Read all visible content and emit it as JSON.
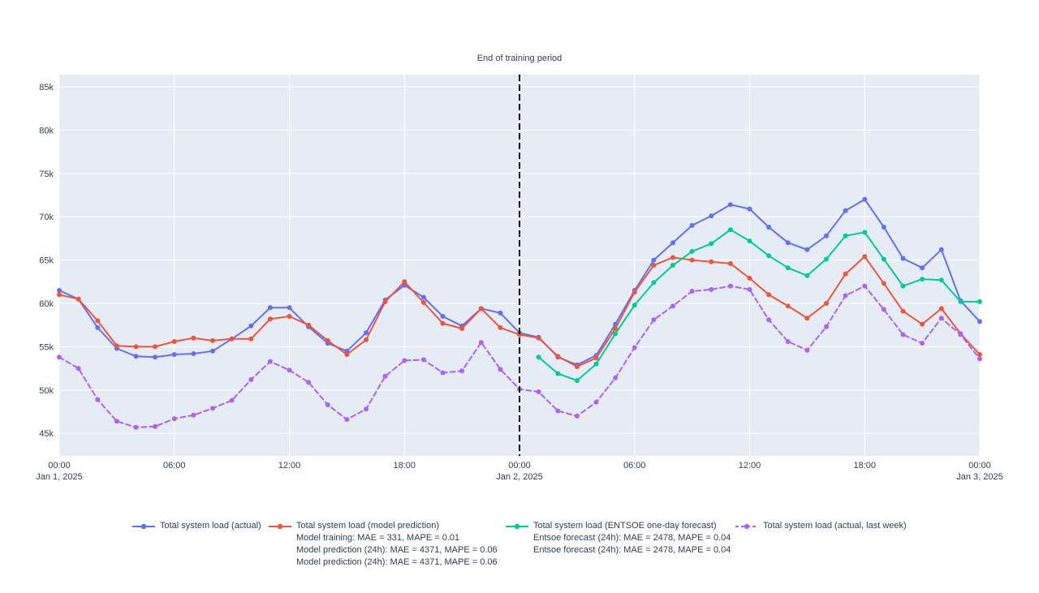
{
  "figure": {
    "annotation_text": "End of training period"
  },
  "colors": {
    "paper_background": "#ffffff",
    "plot_background": "#e5ecf6",
    "gridline": "#ffffff",
    "text": "#2a3f5f",
    "vline": "#000000",
    "series_actual": "#636efa",
    "series_prediction": "#ef553b",
    "series_entsoe": "#00cc96",
    "series_last_week": "#ab63fa"
  },
  "chart_data": {
    "type": "line",
    "title": "End of training period",
    "x_range_hours": [
      0,
      48
    ],
    "y_range_k": [
      42.4,
      86.4
    ],
    "grid": true,
    "x_ticks": [
      {
        "hour": 0,
        "time": "00:00",
        "date": "Jan 1, 2025"
      },
      {
        "hour": 6,
        "time": "06:00",
        "date": ""
      },
      {
        "hour": 12,
        "time": "12:00",
        "date": ""
      },
      {
        "hour": 18,
        "time": "18:00",
        "date": ""
      },
      {
        "hour": 24,
        "time": "00:00",
        "date": "Jan 2, 2025"
      },
      {
        "hour": 30,
        "time": "06:00",
        "date": ""
      },
      {
        "hour": 36,
        "time": "12:00",
        "date": ""
      },
      {
        "hour": 42,
        "time": "18:00",
        "date": ""
      },
      {
        "hour": 48,
        "time": "00:00",
        "date": "Jan 3, 2025"
      }
    ],
    "y_ticks": [
      {
        "value": 45,
        "label": "45k"
      },
      {
        "value": 50,
        "label": "50k"
      },
      {
        "value": 55,
        "label": "55k"
      },
      {
        "value": 60,
        "label": "60k"
      },
      {
        "value": 65,
        "label": "65k"
      },
      {
        "value": 70,
        "label": "70k"
      },
      {
        "value": 75,
        "label": "75k"
      },
      {
        "value": 80,
        "label": "80k"
      },
      {
        "value": 85,
        "label": "85k"
      }
    ],
    "vline": {
      "hour": 24,
      "color": "#000000",
      "dash": "8 4",
      "label": "End of training period"
    },
    "series": [
      {
        "id": "actual",
        "name": "Total system load (actual)",
        "color": "#636efa",
        "dash": "solid",
        "start_hour": 0,
        "values_k": [
          61.5,
          60.5,
          57.2,
          54.8,
          53.9,
          53.8,
          54.1,
          54.2,
          54.5,
          55.9,
          57.4,
          59.5,
          59.5,
          57.3,
          55.4,
          54.5,
          56.6,
          60.4,
          62.1,
          60.7,
          58.5,
          57.4,
          59.4,
          58.9,
          56.6,
          56.1,
          53.8,
          52.9,
          54.0,
          57.6,
          61.5,
          65.0,
          67.0,
          69.0,
          70.1,
          71.4,
          70.9,
          68.8,
          67.0,
          66.2,
          67.8,
          70.7,
          72.0,
          68.8,
          65.2,
          64.1,
          66.2,
          60.3,
          57.9
        ]
      },
      {
        "id": "model-prediction",
        "name": "Total system load (model prediction)",
        "color": "#ef553b",
        "dash": "solid",
        "start_hour": 0,
        "values_k": [
          61.0,
          60.5,
          58.0,
          55.1,
          55.0,
          55.0,
          55.6,
          56.0,
          55.7,
          55.9,
          55.9,
          58.2,
          58.5,
          57.5,
          55.7,
          54.1,
          55.8,
          60.2,
          62.5,
          60.1,
          57.7,
          57.1,
          59.4,
          57.2,
          56.4,
          56.0,
          53.9,
          52.7,
          53.7,
          57.1,
          61.3,
          64.4,
          65.3,
          65.0,
          64.8,
          64.6,
          62.9,
          61.0,
          59.7,
          58.3,
          60.0,
          63.4,
          65.4,
          62.3,
          59.1,
          57.6,
          59.4,
          56.5,
          54.1
        ]
      },
      {
        "id": "entsoe-forecast",
        "name": "Total system load (ENTSOE one-day forecast)",
        "color": "#00cc96",
        "dash": "solid",
        "start_hour": 25,
        "values_k": [
          53.8,
          51.9,
          51.1,
          53.0,
          56.5,
          59.8,
          62.4,
          64.4,
          66.0,
          66.9,
          68.5,
          67.2,
          65.5,
          64.1,
          63.2,
          65.1,
          67.8,
          68.2,
          65.1,
          62.0,
          62.8,
          62.7,
          60.2,
          60.2
        ]
      },
      {
        "id": "actual-last-week",
        "name": "Total system load (actual, last week)",
        "color": "#ab63fa",
        "dash": "6 4",
        "start_hour": 0,
        "values_k": [
          53.8,
          52.5,
          48.9,
          46.4,
          45.7,
          45.8,
          46.7,
          47.1,
          47.9,
          48.8,
          51.2,
          53.3,
          52.3,
          50.9,
          48.3,
          46.6,
          47.8,
          51.6,
          53.4,
          53.5,
          52.0,
          52.2,
          55.5,
          52.4,
          50.1,
          49.8,
          47.6,
          47.0,
          48.6,
          51.4,
          54.9,
          58.1,
          59.7,
          61.4,
          61.6,
          62.0,
          61.6,
          58.1,
          55.6,
          54.6,
          57.3,
          60.9,
          62.0,
          59.3,
          56.4,
          55.4,
          58.3,
          56.4,
          53.6
        ]
      }
    ]
  },
  "legend": {
    "items": [
      {
        "series_id": "actual",
        "label": "Total system load (actual)",
        "color": "#636efa",
        "dash": "solid",
        "metrics": []
      },
      {
        "series_id": "model-prediction",
        "label": "Total system load (model prediction)",
        "color": "#ef553b",
        "dash": "solid",
        "metrics": [
          "Model training: MAE = 331, MAPE = 0.01",
          "Model prediction (24h): MAE = 4371, MAPE = 0.06",
          "Model prediction (24h): MAE = 4371, MAPE = 0.06"
        ]
      },
      {
        "series_id": "entsoe-forecast",
        "label": "Total system load (ENTSOE one-day forecast)",
        "color": "#00cc96",
        "dash": "solid",
        "metrics": [
          "Entsoe forecast (24h): MAE = 2478, MAPE = 0.04",
          "Entsoe forecast (24h): MAE = 2478, MAPE = 0.04"
        ]
      },
      {
        "series_id": "actual-last-week",
        "label": "Total system load (actual, last week)",
        "color": "#ab63fa",
        "dash": "4 3",
        "metrics": []
      }
    ]
  }
}
